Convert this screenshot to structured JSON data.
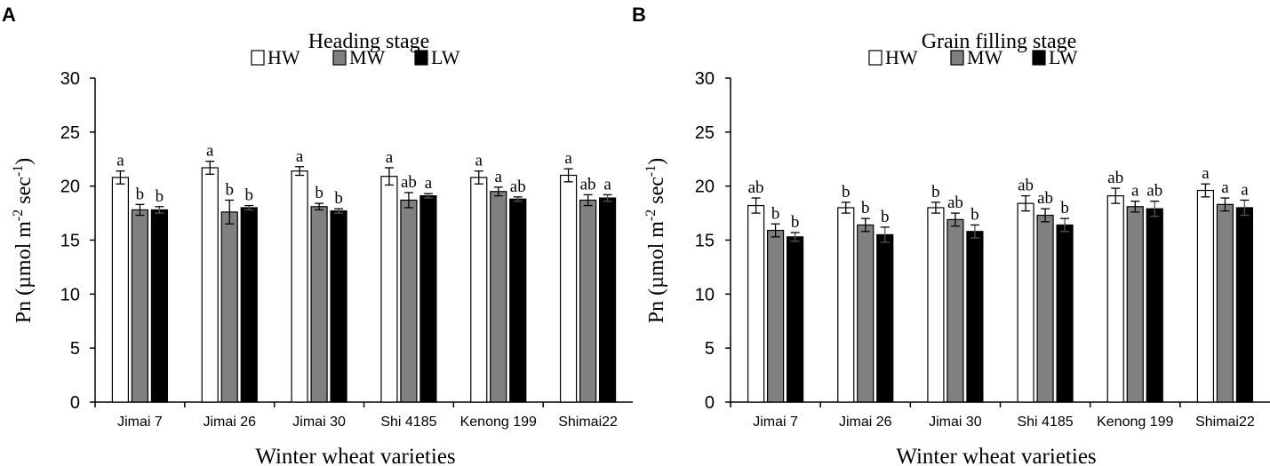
{
  "series_styles": [
    {
      "name": "HW",
      "fill": "#ffffff"
    },
    {
      "name": "MW",
      "fill": "#808080"
    },
    {
      "name": "LW",
      "fill": "#000000"
    }
  ],
  "chart_data": [
    {
      "type": "bar",
      "panel": "A",
      "title": "Heading stage",
      "xlabel": "Winter wheat varieties",
      "ylabel": "Pn (µmol m-2 sec-1)",
      "ylabel_parts": {
        "base": "Pn (µmol m",
        "sup1": "-2",
        "mid": " sec",
        "sup2": "-1",
        "end": ")"
      },
      "ylim": [
        0,
        30
      ],
      "yticks": [
        0,
        5,
        10,
        15,
        20,
        25,
        30
      ],
      "legend_position": "top-center",
      "categories": [
        "Jimai 7",
        "Jimai 26",
        "Jimai 30",
        "Shi 4185",
        "Kenong 199",
        "Shimai22"
      ],
      "series": [
        {
          "name": "HW",
          "values": [
            20.8,
            21.7,
            21.4,
            20.9,
            20.8,
            21.0
          ],
          "errors": [
            0.6,
            0.6,
            0.4,
            0.8,
            0.6,
            0.6
          ],
          "labels": [
            "a",
            "a",
            "a",
            "a",
            "a",
            "a"
          ]
        },
        {
          "name": "MW",
          "values": [
            17.8,
            17.6,
            18.1,
            18.7,
            19.5,
            18.7
          ],
          "errors": [
            0.5,
            1.1,
            0.3,
            0.7,
            0.4,
            0.5
          ],
          "labels": [
            "b",
            "b",
            "b",
            "ab",
            "a",
            "ab"
          ]
        },
        {
          "name": "LW",
          "values": [
            17.8,
            18.0,
            17.7,
            19.1,
            18.8,
            18.9
          ],
          "errors": [
            0.3,
            0.2,
            0.2,
            0.2,
            0.2,
            0.3
          ],
          "labels": [
            "b",
            "b",
            "b",
            "a",
            "ab",
            "a"
          ]
        }
      ]
    },
    {
      "type": "bar",
      "panel": "B",
      "title": "Grain filling stage",
      "xlabel": "Winter wheat varieties",
      "ylabel": "Pn (µmol m-2 sec-1)",
      "ylabel_parts": {
        "base": "Pn (µmol m",
        "sup1": "-2",
        "mid": " sec",
        "sup2": "-1",
        "end": ")"
      },
      "ylim": [
        0,
        30
      ],
      "yticks": [
        0,
        5,
        10,
        15,
        20,
        25,
        30
      ],
      "legend_position": "top-center",
      "categories": [
        "Jimai 7",
        "Jimai 26",
        "Jimai 30",
        "Shi 4185",
        "Kenong 199",
        "Shimai22"
      ],
      "series": [
        {
          "name": "HW",
          "values": [
            18.2,
            18.0,
            18.0,
            18.4,
            19.1,
            19.6
          ],
          "errors": [
            0.7,
            0.5,
            0.5,
            0.7,
            0.7,
            0.6
          ],
          "labels": [
            "ab",
            "b",
            "b",
            "ab",
            "ab",
            "a"
          ]
        },
        {
          "name": "MW",
          "values": [
            15.9,
            16.4,
            16.9,
            17.3,
            18.1,
            18.3
          ],
          "errors": [
            0.6,
            0.6,
            0.6,
            0.6,
            0.5,
            0.6
          ],
          "labels": [
            "b",
            "b",
            "ab",
            "ab",
            "a",
            "a"
          ]
        },
        {
          "name": "LW",
          "values": [
            15.3,
            15.5,
            15.8,
            16.4,
            17.9,
            18.0
          ],
          "errors": [
            0.4,
            0.7,
            0.6,
            0.6,
            0.7,
            0.7
          ],
          "labels": [
            "b",
            "b",
            "b",
            "b",
            "ab",
            "a"
          ]
        }
      ]
    }
  ]
}
